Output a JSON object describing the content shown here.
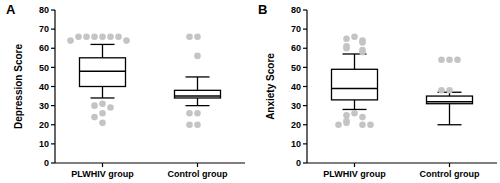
{
  "chart_data": [
    {
      "type": "box",
      "title": "A",
      "y_label": "Depression Score",
      "categories": [
        "PLWHIV group",
        "Control group"
      ],
      "color": "#000000",
      "ylim": [
        0,
        80
      ],
      "yticks": [
        0,
        10,
        20,
        30,
        40,
        50,
        60,
        70,
        80
      ],
      "boxes": [
        {
          "low": 34,
          "q1": 40,
          "median": 48,
          "q3": 55,
          "high": 62,
          "outliers": [
            66,
            66,
            66,
            66,
            66,
            66,
            64,
            64,
            31,
            30,
            29,
            26,
            24,
            21
          ]
        },
        {
          "low": 30,
          "q1": 34,
          "median": 35,
          "q3": 38,
          "high": 45,
          "outliers": [
            66,
            66,
            56,
            26,
            26,
            20,
            20
          ]
        }
      ]
    },
    {
      "type": "box",
      "title": "B",
      "y_label": "Anxiety Score",
      "categories": [
        "PLWHIV group",
        "Control group"
      ],
      "color": "#000000",
      "ylim": [
        0,
        80
      ],
      "yticks": [
        0,
        10,
        20,
        30,
        40,
        50,
        60,
        70,
        80
      ],
      "boxes": [
        {
          "low": 28,
          "q1": 33,
          "median": 39,
          "q3": 49,
          "high": 57,
          "outliers": [
            66,
            65,
            64,
            63,
            61,
            60,
            59,
            58,
            26,
            25,
            24,
            22,
            21,
            20,
            20,
            20
          ]
        },
        {
          "low": 20,
          "q1": 31,
          "median": 32,
          "q3": 35,
          "high": 37,
          "outliers": [
            54,
            54,
            54,
            38,
            38
          ]
        }
      ]
    }
  ]
}
